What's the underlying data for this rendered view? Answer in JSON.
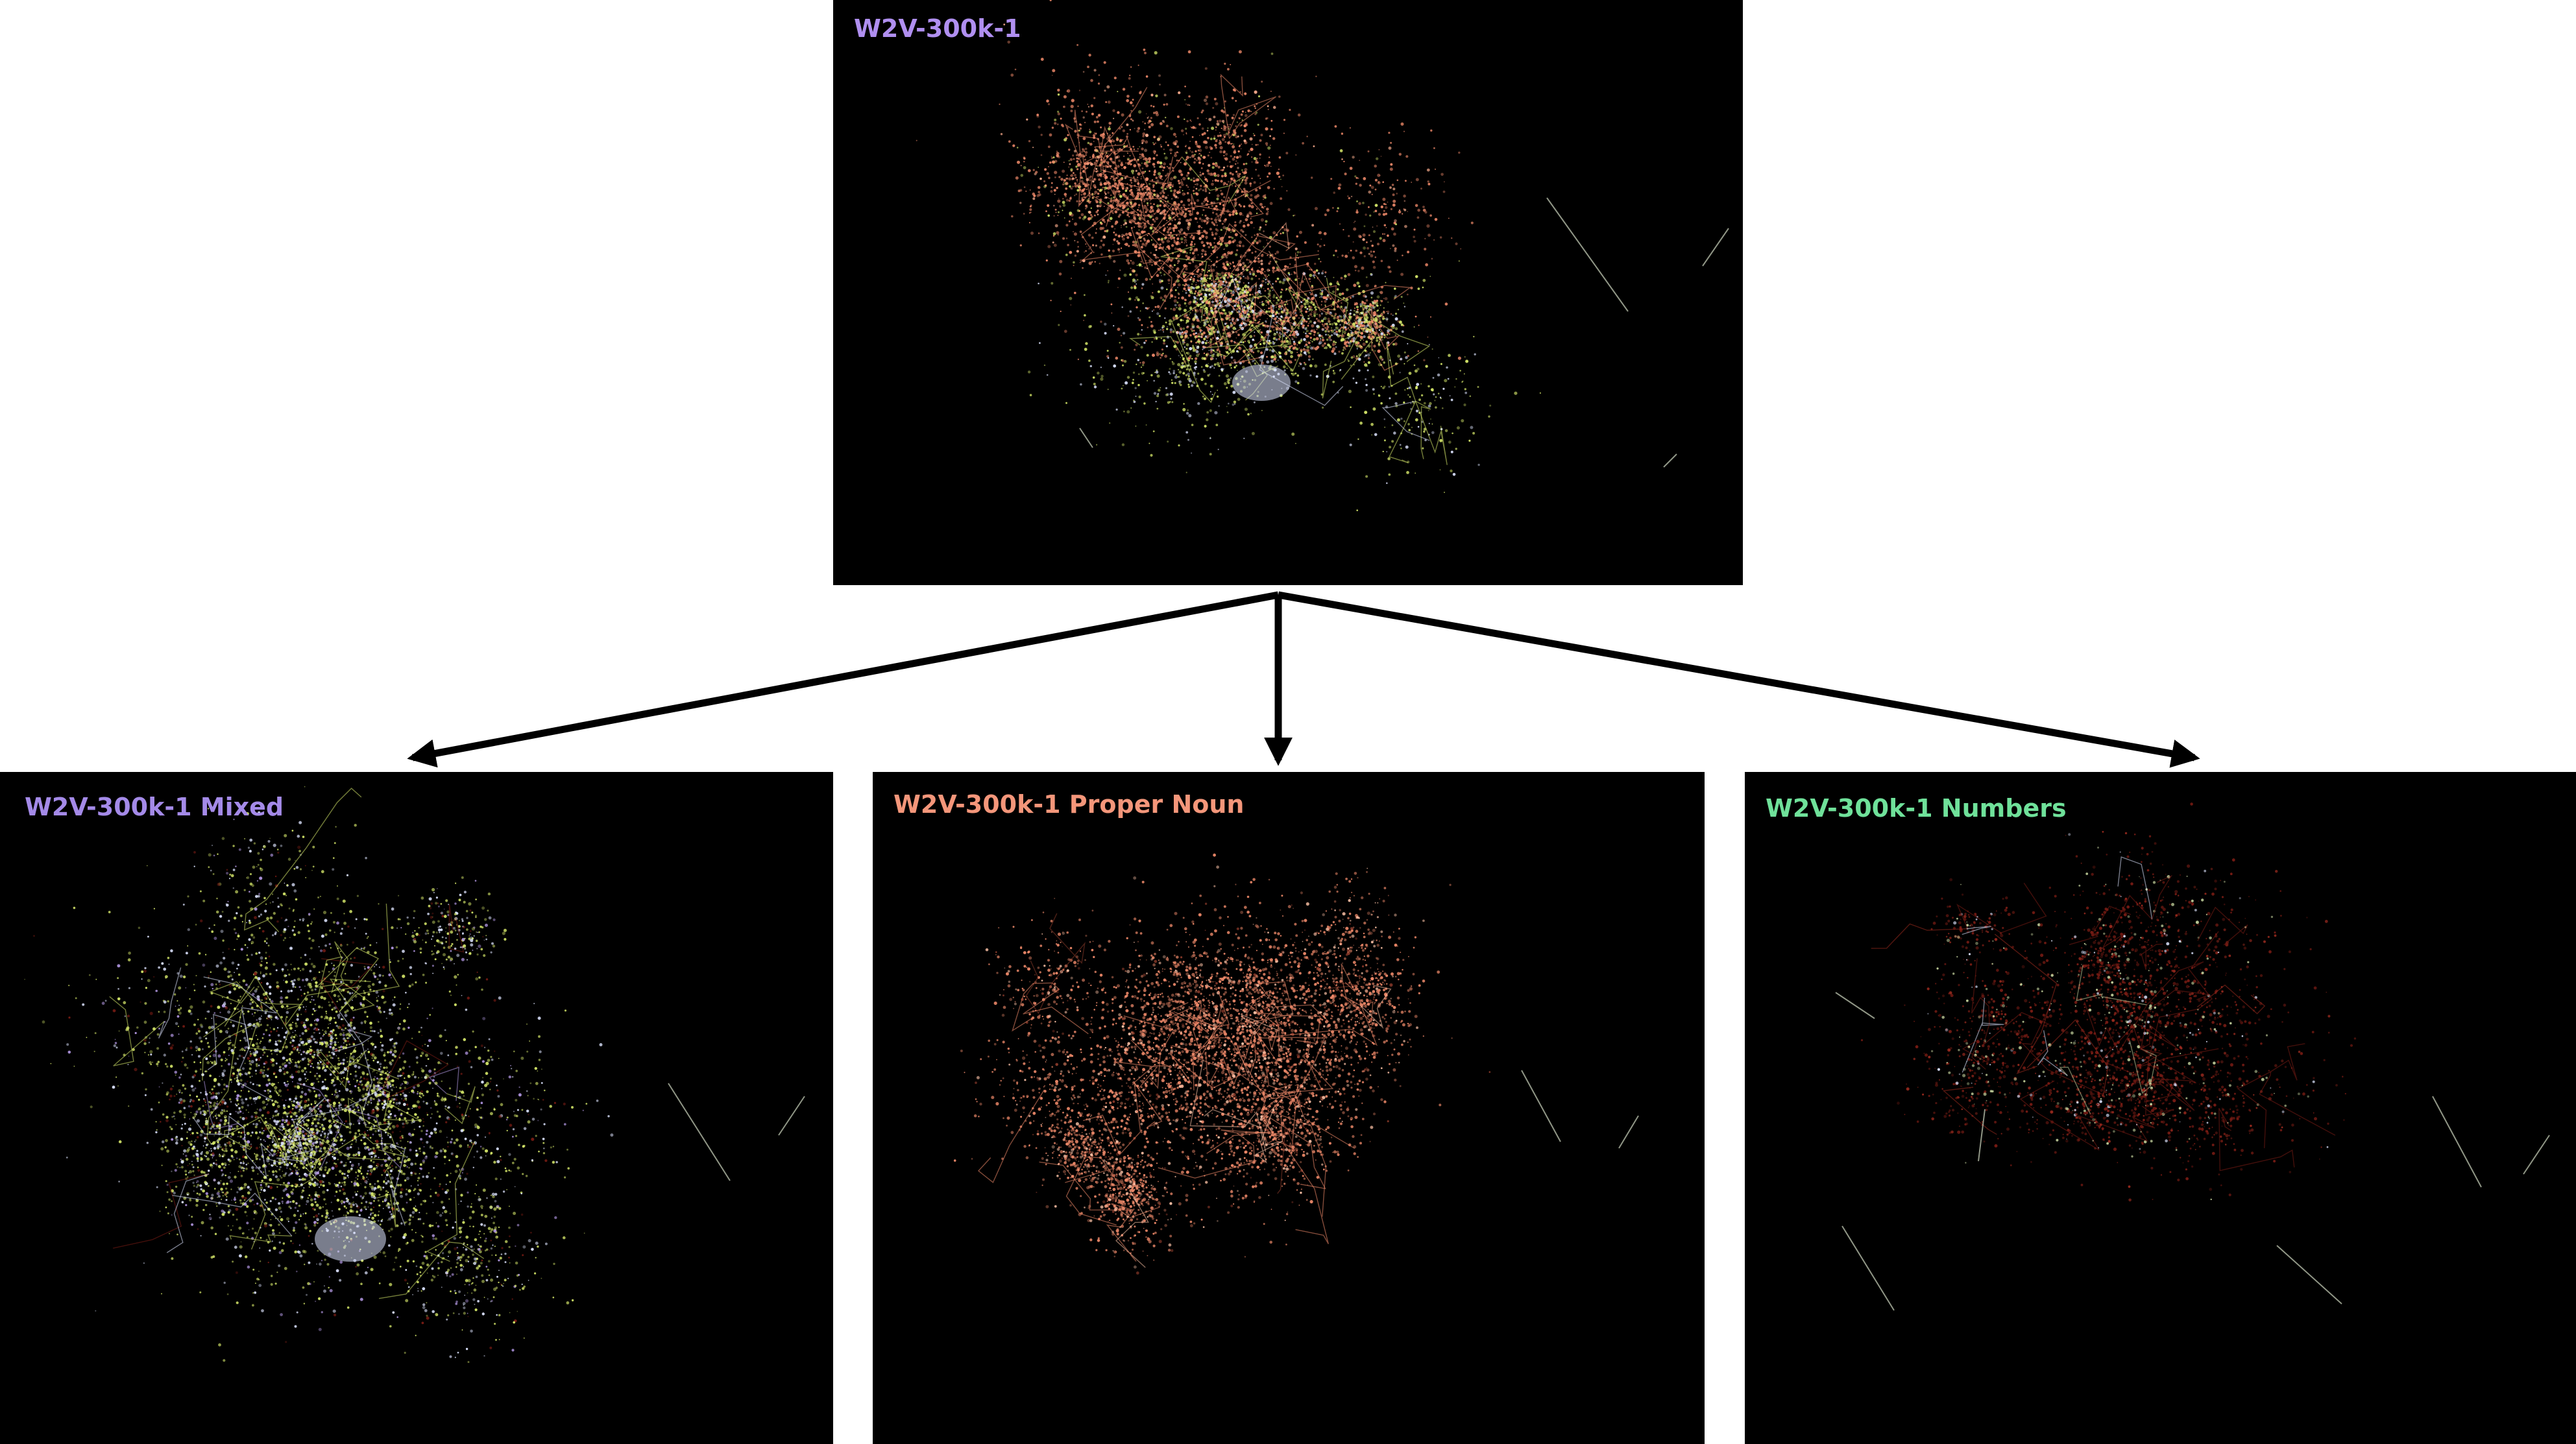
{
  "panels": {
    "top": {
      "title": "W2V-300k-1",
      "title_color": "#b08ff0",
      "palette": "mixed-full"
    },
    "mixed": {
      "title": "W2V-300k-1 Mixed",
      "title_color": "#a48ae8",
      "palette": "mixed"
    },
    "proper": {
      "title": "W2V-300k-1 Proper Noun",
      "title_color": "#f4967a",
      "palette": "proper"
    },
    "numbers": {
      "title": "W2V-300k-1 Numbers",
      "title_color": "#6fe19a",
      "palette": "numbers"
    }
  },
  "colors": {
    "background": "#ffffff",
    "panel_background": "#000000",
    "arrow": "#000000",
    "salmon": "#f08a6a",
    "yellow_green": "#d6e86a",
    "white_blue": "#dde4ff",
    "dark_red": "#7a1c14"
  },
  "icons": {
    "arrow": "arrow-down-icon"
  }
}
